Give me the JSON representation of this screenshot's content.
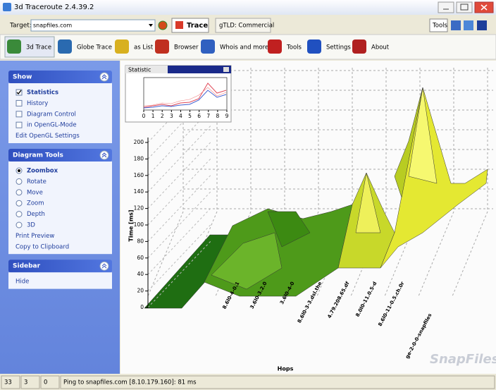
{
  "window": {
    "title": "3d Traceroute 2.4.39.2"
  },
  "target_bar": {
    "label": "Target:",
    "value": "snapfiles.com",
    "trace_button": "Trace",
    "tab": "gTLD: Commercial",
    "tools_button": "Tools"
  },
  "toolbar": [
    "3d Trace",
    "Globe Trace",
    "as List",
    "Browser",
    "Whois and more",
    "Tools",
    "Settings",
    "About"
  ],
  "sidebar": [
    {
      "title": "Show",
      "items": [
        {
          "text": "Statistics",
          "kind": "check",
          "checked": true
        },
        {
          "text": "History",
          "kind": "check",
          "checked": false
        },
        {
          "text": "Diagram Control",
          "kind": "check",
          "checked": false
        },
        {
          "text": "in OpenGL-Mode",
          "kind": "check",
          "checked": false
        },
        {
          "text": "Edit OpenGL Settings",
          "kind": "link"
        }
      ]
    },
    {
      "title": "Diagram Tools",
      "items": [
        {
          "text": "Zoombox",
          "kind": "radio",
          "checked": true
        },
        {
          "text": "Rotate",
          "kind": "radio",
          "checked": false
        },
        {
          "text": "Move",
          "kind": "radio",
          "checked": false
        },
        {
          "text": "Zoom",
          "kind": "radio",
          "checked": false
        },
        {
          "text": "Depth",
          "kind": "radio",
          "checked": false
        },
        {
          "text": "3D",
          "kind": "radio",
          "checked": false
        },
        {
          "text": "Print Preview",
          "kind": "link"
        },
        {
          "text": "Copy to Clipboard",
          "kind": "link"
        }
      ]
    },
    {
      "title": "Sidebar",
      "items": [
        {
          "text": "Hide",
          "kind": "link"
        }
      ]
    }
  ],
  "chart": {
    "statistic": {
      "title": "Statistic",
      "xticks": [
        0,
        1,
        2,
        3,
        4,
        5,
        6,
        7,
        8,
        9
      ]
    },
    "ylabel": "Time [ms]",
    "xlabel": "Hops",
    "ylim": [
      0,
      200
    ],
    "yticks": [
      0,
      20,
      40,
      60,
      80,
      100,
      120,
      140,
      160,
      180,
      200
    ],
    "hops": [
      "8.6l0-4-0.1",
      "3.6l0-3.2.0",
      "3.6l0-4-0",
      "8.6l0-3-3.dsl.the",
      "4.79.208.65.df",
      "8.0l0-11.0.5-d",
      "8.6l0-11-0.5.ch.0r",
      "ge-2-0-0-snapfiles"
    ]
  },
  "watermark": "SnapFiles",
  "status": [
    "33",
    "3",
    "0",
    "Ping to snapfiles.com [8.10.179.160]: 81 ms"
  ]
}
